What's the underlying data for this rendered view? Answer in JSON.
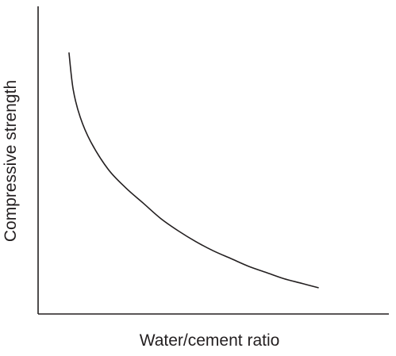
{
  "chart_data": {
    "type": "line",
    "title": "",
    "xlabel": "Water/cement ratio",
    "ylabel": "Compressive strength",
    "xlim": [
      0,
      1
    ],
    "ylim": [
      0,
      1
    ],
    "grid": false,
    "legend": "none",
    "series": [
      {
        "values_x": [
          0.088,
          0.1,
          0.12,
          0.15,
          0.2,
          0.25,
          0.3,
          0.35,
          0.4,
          0.45,
          0.5,
          0.55,
          0.6,
          0.65,
          0.7,
          0.75,
          0.8
        ],
        "values_y": [
          0.85,
          0.73,
          0.64,
          0.56,
          0.47,
          0.41,
          0.36,
          0.31,
          0.27,
          0.235,
          0.205,
          0.18,
          0.155,
          0.135,
          0.115,
          0.1,
          0.085
        ]
      }
    ],
    "colors": {
      "ink": "#231f20"
    }
  }
}
